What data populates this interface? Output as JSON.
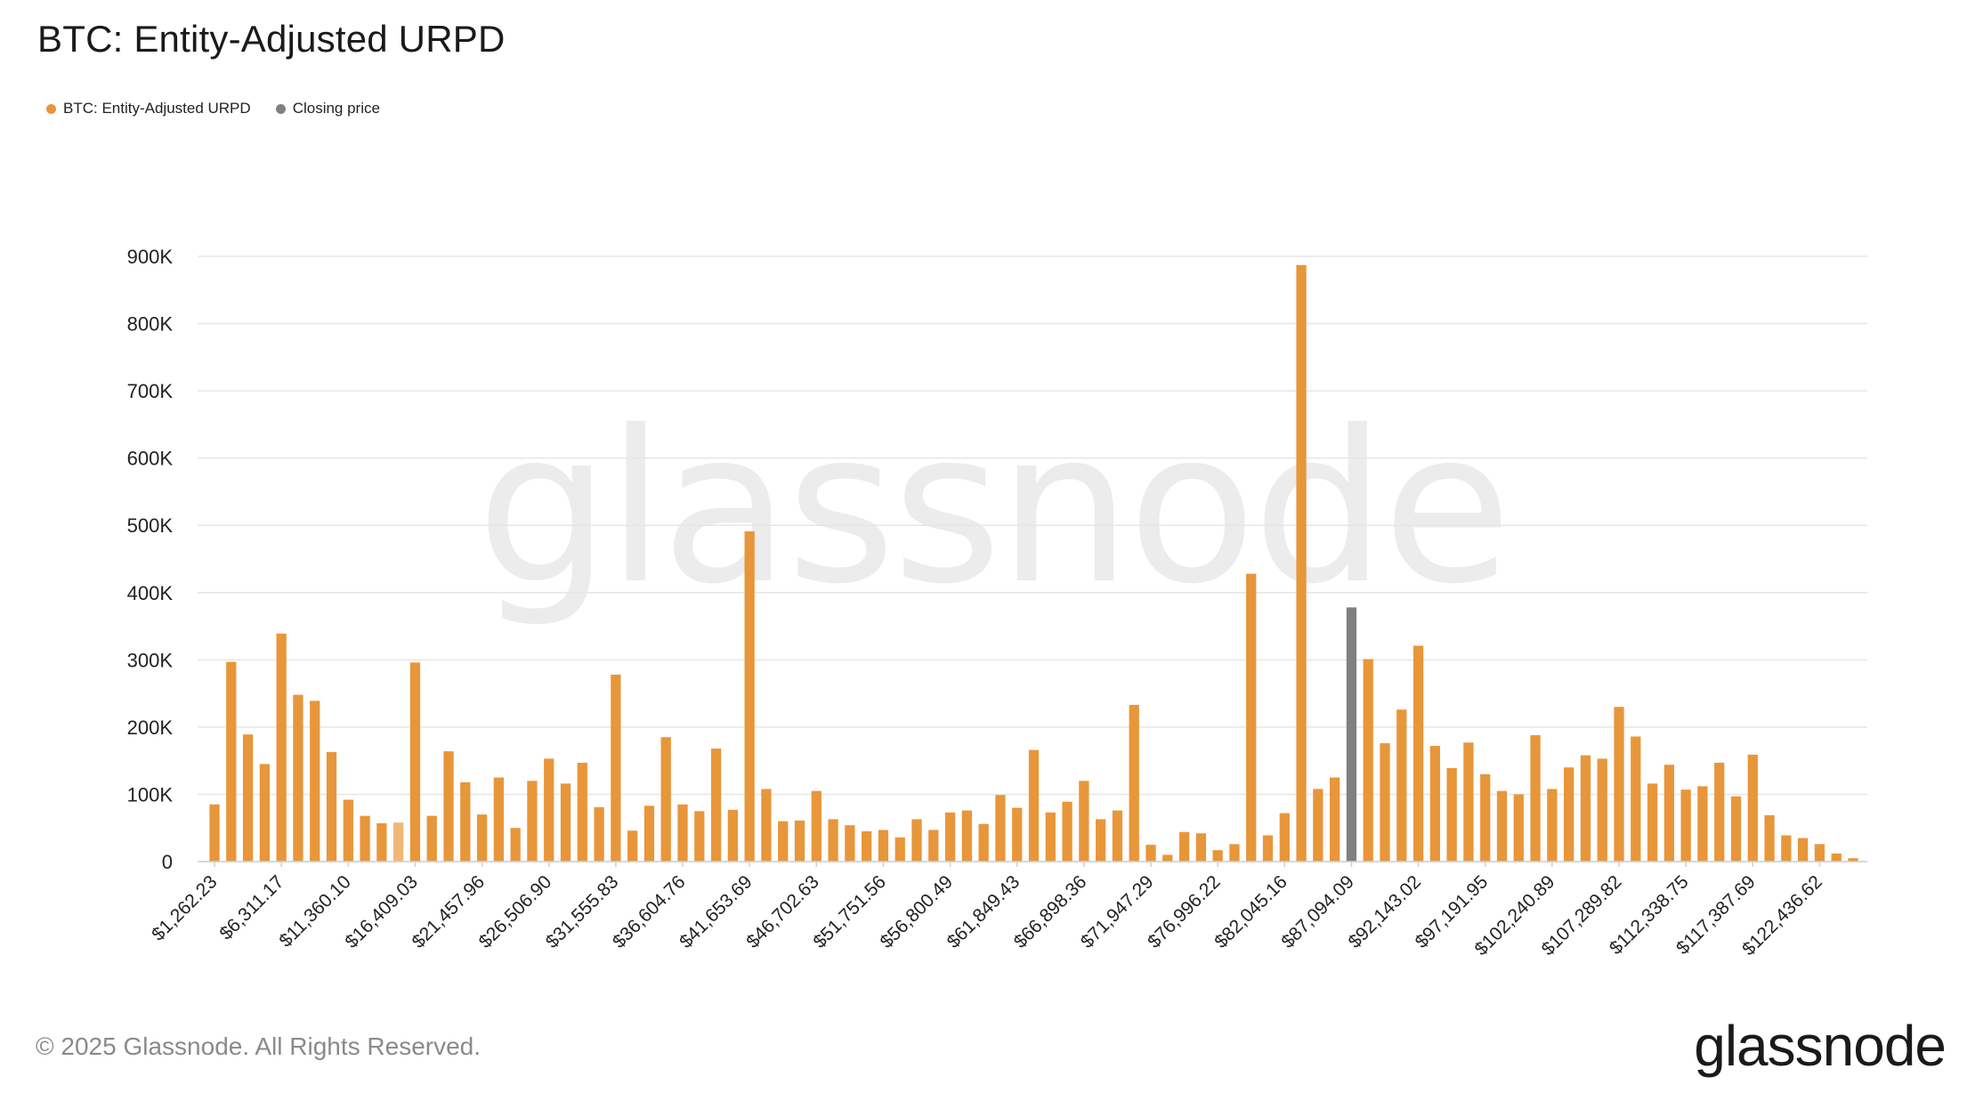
{
  "chart_title": "BTC: Entity-Adjusted URPD",
  "legend": [
    {
      "label": "BTC: Entity-Adjusted URPD",
      "color": "#e8963a"
    },
    {
      "label": "Closing price",
      "color": "#808080"
    }
  ],
  "watermark": "glassnode",
  "footer": "© 2025 Glassnode. All Rights Reserved.",
  "brand": "glassnode",
  "colors": {
    "bar": "#e8963a",
    "bar_light": "#f0b777",
    "closing": "#808080",
    "grid": "#e6e6e6"
  },
  "chart_data": {
    "type": "bar",
    "title": "BTC: Entity-Adjusted URPD",
    "ylim": [
      0,
      900000
    ],
    "yticks": [
      0,
      100000,
      200000,
      300000,
      400000,
      500000,
      600000,
      700000,
      800000,
      900000
    ],
    "ytick_labels": [
      "0",
      "100K",
      "200K",
      "300K",
      "400K",
      "500K",
      "600K",
      "700K",
      "800K",
      "900K"
    ],
    "grid": true,
    "legend_position": "top-left",
    "x_tick_labels": [
      "$1,262.23",
      "$6,311.17",
      "$11,360.10",
      "$16,409.03",
      "$21,457.96",
      "$26,506.90",
      "$31,555.83",
      "$36,604.76",
      "$41,653.69",
      "$46,702.63",
      "$51,751.56",
      "$56,800.49",
      "$61,849.43",
      "$66,898.36",
      "$71,947.29",
      "$76,996.22",
      "$82,045.16",
      "$87,094.09",
      "$92,143.02",
      "$97,191.95",
      "$102,240.89",
      "$107,289.82",
      "$112,338.75",
      "$117,387.69",
      "$122,436.62"
    ],
    "x_tick_every": 4,
    "closing_price_index": 68,
    "highlight_index": 11,
    "values": [
      85000,
      297000,
      189000,
      145000,
      339000,
      248000,
      239000,
      163000,
      92000,
      68000,
      57000,
      58000,
      296000,
      68000,
      164000,
      118000,
      70000,
      125000,
      50000,
      120000,
      153000,
      116000,
      147000,
      81000,
      278000,
      46000,
      83000,
      185000,
      85000,
      75000,
      168000,
      77000,
      491000,
      108000,
      60000,
      61000,
      105000,
      63000,
      54000,
      45000,
      47000,
      36000,
      63000,
      47000,
      73000,
      76000,
      56000,
      99000,
      80000,
      166000,
      73000,
      89000,
      120000,
      63000,
      76000,
      233000,
      25000,
      10000,
      44000,
      42000,
      17000,
      26000,
      428000,
      39000,
      72000,
      887000,
      108000,
      125000,
      378000,
      301000,
      176000,
      226000,
      321000,
      172000,
      139000,
      177000,
      130000,
      105000,
      100000,
      188000,
      108000,
      140000,
      158000,
      153000,
      230000,
      186000,
      116000,
      144000,
      107000,
      112000,
      147000,
      97000,
      159000,
      69000,
      39000,
      35000,
      26000,
      12000,
      5000
    ]
  }
}
